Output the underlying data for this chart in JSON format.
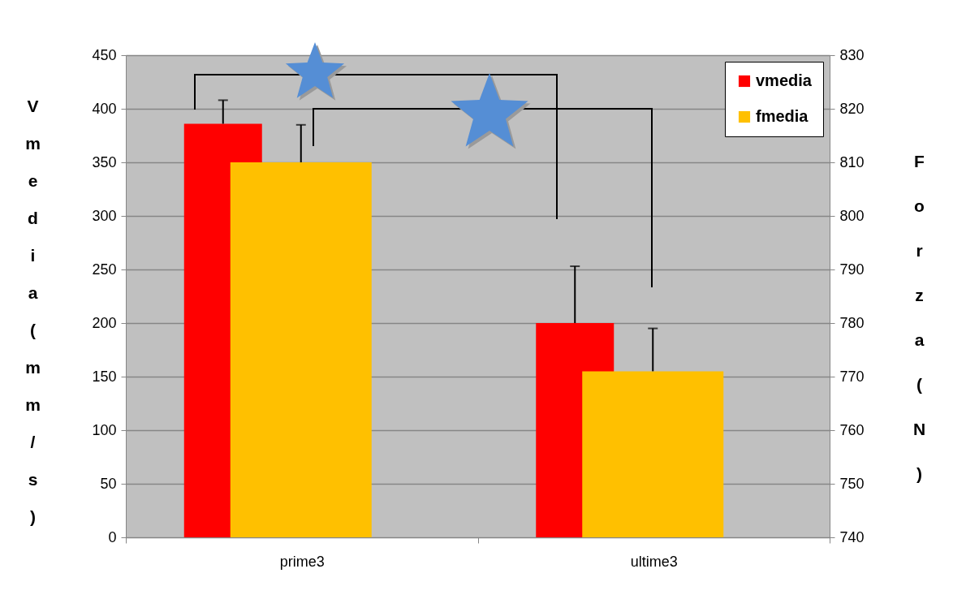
{
  "chart_data": {
    "type": "bar",
    "categories": [
      "prime3",
      "ultime3"
    ],
    "series": [
      {
        "name": "vmedia",
        "color": "#ff0000",
        "values": [
          386,
          200
        ],
        "errors": [
          22,
          53
        ]
      },
      {
        "name": "fmedia",
        "color": "#ffc000",
        "values": [
          810,
          771
        ],
        "errors": [
          7,
          8
        ],
        "axis": "y2"
      }
    ],
    "ylabel": "Vmedia (mm/s)",
    "y2label": "Forza (N)",
    "ylim": [
      0,
      450
    ],
    "yticks": [
      0,
      50,
      100,
      150,
      200,
      250,
      300,
      350,
      400,
      450
    ],
    "y2lim": [
      740,
      830
    ],
    "y2ticks": [
      740,
      750,
      760,
      770,
      780,
      790,
      800,
      810,
      820,
      830
    ],
    "grid": "y",
    "legend": "top right"
  }
}
